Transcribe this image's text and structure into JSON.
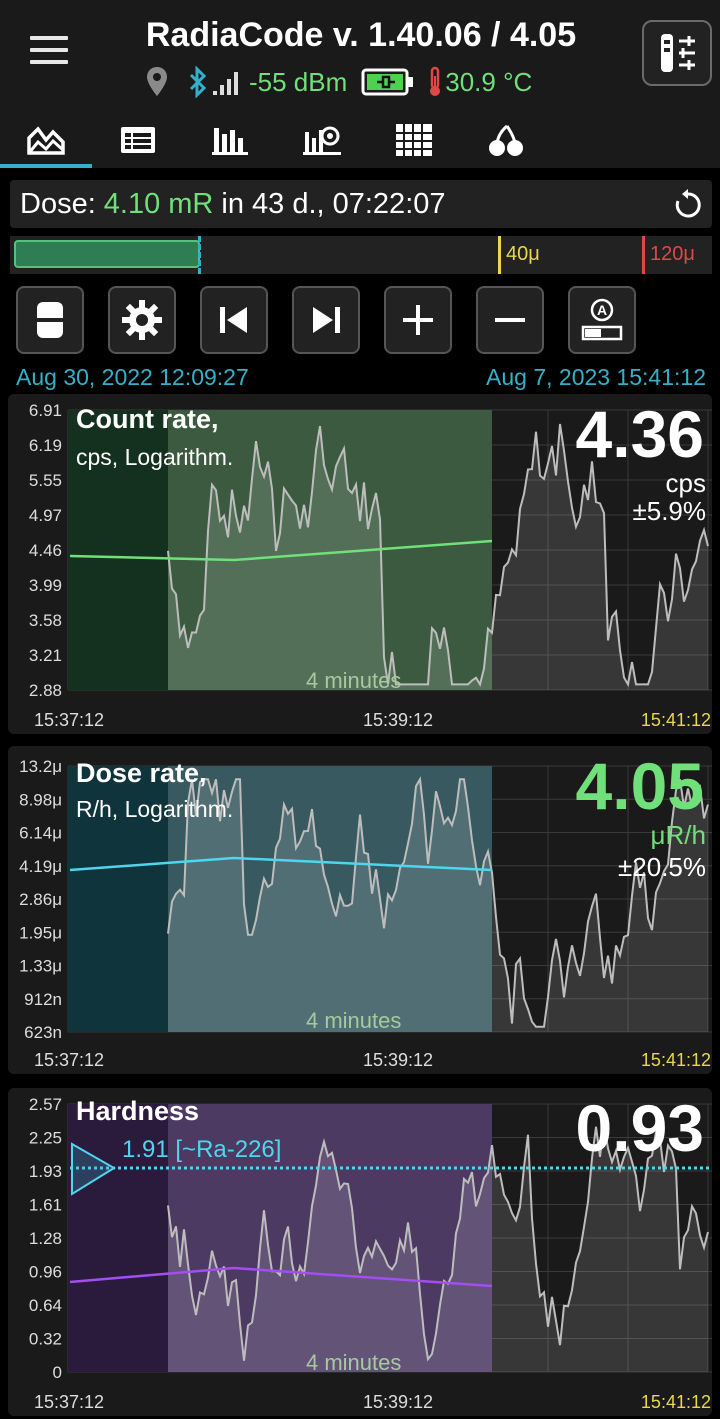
{
  "app": {
    "title": "RadiaCode v. 1.40.06 / 4.05",
    "rssi": "-55 dBm",
    "temperature": "30.9 °C"
  },
  "icons": [
    "menu-icon",
    "location-icon",
    "bluetooth-icon",
    "signal-icon",
    "battery-charging-icon",
    "thermometer-icon",
    "settings-sliders-icon",
    "tab-graph-icon",
    "tab-table-icon",
    "tab-histogram-icon",
    "tab-spectrum-icon",
    "tab-grid-icon",
    "tab-cherry-icon",
    "reset-icon",
    "toggle-icon",
    "gear-icon",
    "skip-start-icon",
    "skip-end-icon",
    "plus-icon",
    "minus-icon",
    "auto-scale-icon"
  ],
  "colors": {
    "accent": "#34b1c9",
    "green": "#6fe07a",
    "count_line": "#6fe07a",
    "dose_line": "#4fd6ef",
    "hardness_line": "#a34ef0"
  },
  "dose": {
    "label": "Dose:",
    "value": "4.10 mR",
    "rest": "in 43 d., 07:22:07"
  },
  "levels": {
    "low": "40μ",
    "high": "120μ",
    "fill_fraction": 0.27
  },
  "range": {
    "start": "Aug 30, 2022 12:09:27",
    "end": "Aug 7, 2023 15:41:12"
  },
  "charts": {
    "count": {
      "title": "Count rate,",
      "subtitle": "cps, Logarithm.",
      "value": "4.36",
      "unit": "cps",
      "error": "±5.9%",
      "yticks": [
        "6.91",
        "6.19",
        "5.55",
        "4.97",
        "4.46",
        "3.99",
        "3.58",
        "3.21",
        "2.88"
      ],
      "xticks": [
        "15:37:12",
        "15:39:12",
        "15:41:12"
      ],
      "window": "4 minutes"
    },
    "dose": {
      "title": "Dose rate,",
      "subtitle": "R/h, Logarithm.",
      "value": "4.05",
      "unit": "μR/h",
      "error": "±20.5%",
      "yticks": [
        "13.2μ",
        "8.98μ",
        "6.14μ",
        "4.19μ",
        "2.86μ",
        "1.95μ",
        "1.33μ",
        "912n",
        "623n"
      ],
      "xticks": [
        "15:37:12",
        "15:39:12",
        "15:41:12"
      ],
      "window": "4 minutes"
    },
    "hardness": {
      "title": "Hardness",
      "value": "0.93",
      "marker": "1.91 [~Ra-226]",
      "yticks": [
        "2.57",
        "2.25",
        "1.93",
        "1.61",
        "1.28",
        "0.96",
        "0.64",
        "0.32",
        "0"
      ],
      "xticks": [
        "15:37:12",
        "15:39:12",
        "15:41:12"
      ],
      "window": "4 minutes"
    }
  }
}
